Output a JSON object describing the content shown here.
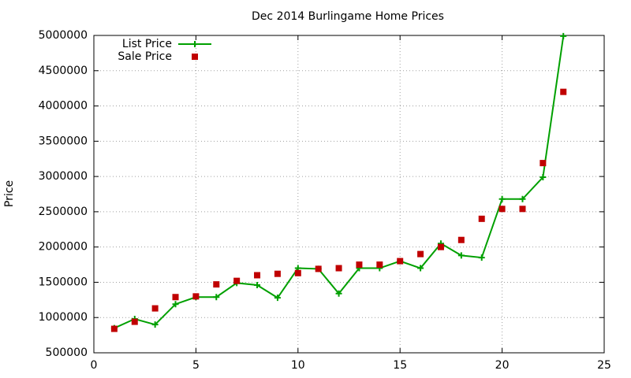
{
  "chart_data": {
    "type": "line",
    "title": "Dec 2014 Burlingame Home Prices",
    "y_label": "Price",
    "x": [
      1,
      2,
      3,
      4,
      5,
      6,
      7,
      8,
      9,
      10,
      11,
      12,
      13,
      14,
      15,
      16,
      17,
      18,
      19,
      20,
      21,
      22,
      23
    ],
    "series": [
      {
        "name": "List Price",
        "color": "#00a000",
        "mode": "linespoints",
        "values": [
          850000,
          980000,
          900000,
          1190000,
          1290000,
          1290000,
          1490000,
          1460000,
          1280000,
          1700000,
          1690000,
          1340000,
          1700000,
          1700000,
          1800000,
          1700000,
          2050000,
          1880000,
          1850000,
          2680000,
          2680000,
          2990000,
          4990000
        ]
      },
      {
        "name": "Sale Price",
        "color": "#c00000",
        "mode": "points",
        "values": [
          840000,
          940000,
          1130000,
          1290000,
          1300000,
          1470000,
          1520000,
          1600000,
          1620000,
          1630000,
          1690000,
          1700000,
          1750000,
          1750000,
          1800000,
          1900000,
          2000000,
          2100000,
          2400000,
          2540000,
          2540000,
          3190000,
          4200000
        ]
      }
    ],
    "xlim": [
      0,
      25
    ],
    "xticks": [
      0,
      5,
      10,
      15,
      20,
      25
    ],
    "ylim": [
      500000,
      5000000
    ],
    "yticks": [
      500000,
      1000000,
      1500000,
      2000000,
      2500000,
      3000000,
      3500000,
      4000000,
      4500000,
      5000000
    ],
    "grid": true,
    "legend": "top-left"
  }
}
